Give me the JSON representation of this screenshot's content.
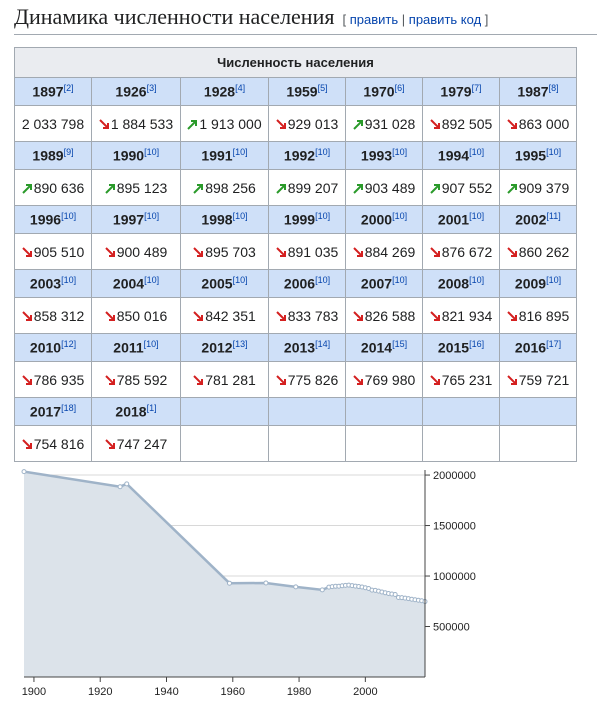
{
  "header": {
    "title": "Динамика численности населения",
    "edit_open": "[",
    "edit_link": "править",
    "edit_sep": "|",
    "edit_code_link": "править код",
    "edit_close": "]"
  },
  "table": {
    "caption": "Численность населения",
    "rows": [
      {
        "years": [
          {
            "year": "1897",
            "ref": "[2]"
          },
          {
            "year": "1926",
            "ref": "[3]"
          },
          {
            "year": "1928",
            "ref": "[4]"
          },
          {
            "year": "1959",
            "ref": "[5]"
          },
          {
            "year": "1970",
            "ref": "[6]"
          },
          {
            "year": "1979",
            "ref": "[7]"
          },
          {
            "year": "1987",
            "ref": "[8]"
          }
        ],
        "values": [
          {
            "text": "2 033 798"
          },
          {
            "text": "1 884 533",
            "trend": "down"
          },
          {
            "text": "1 913 000",
            "trend": "up"
          },
          {
            "text": "929 013",
            "trend": "down"
          },
          {
            "text": "931 028",
            "trend": "up"
          },
          {
            "text": "892 505",
            "trend": "down"
          },
          {
            "text": "863 000",
            "trend": "down"
          }
        ]
      },
      {
        "years": [
          {
            "year": "1989",
            "ref": "[9]"
          },
          {
            "year": "1990",
            "ref": "[10]"
          },
          {
            "year": "1991",
            "ref": "[10]"
          },
          {
            "year": "1992",
            "ref": "[10]"
          },
          {
            "year": "1993",
            "ref": "[10]"
          },
          {
            "year": "1994",
            "ref": "[10]"
          },
          {
            "year": "1995",
            "ref": "[10]"
          }
        ],
        "values": [
          {
            "text": "890 636",
            "trend": "up"
          },
          {
            "text": "895 123",
            "trend": "up"
          },
          {
            "text": "898 256",
            "trend": "up"
          },
          {
            "text": "899 207",
            "trend": "up"
          },
          {
            "text": "903 489",
            "trend": "up"
          },
          {
            "text": "907 552",
            "trend": "up"
          },
          {
            "text": "909 379",
            "trend": "up"
          }
        ]
      },
      {
        "years": [
          {
            "year": "1996",
            "ref": "[10]"
          },
          {
            "year": "1997",
            "ref": "[10]"
          },
          {
            "year": "1998",
            "ref": "[10]"
          },
          {
            "year": "1999",
            "ref": "[10]"
          },
          {
            "year": "2000",
            "ref": "[10]"
          },
          {
            "year": "2001",
            "ref": "[10]"
          },
          {
            "year": "2002",
            "ref": "[11]"
          }
        ],
        "values": [
          {
            "text": "905 510",
            "trend": "down"
          },
          {
            "text": "900 489",
            "trend": "down"
          },
          {
            "text": "895 703",
            "trend": "down"
          },
          {
            "text": "891 035",
            "trend": "down"
          },
          {
            "text": "884 269",
            "trend": "down"
          },
          {
            "text": "876 672",
            "trend": "down"
          },
          {
            "text": "860 262",
            "trend": "down"
          }
        ]
      },
      {
        "years": [
          {
            "year": "2003",
            "ref": "[10]"
          },
          {
            "year": "2004",
            "ref": "[10]"
          },
          {
            "year": "2005",
            "ref": "[10]"
          },
          {
            "year": "2006",
            "ref": "[10]"
          },
          {
            "year": "2007",
            "ref": "[10]"
          },
          {
            "year": "2008",
            "ref": "[10]"
          },
          {
            "year": "2009",
            "ref": "[10]"
          }
        ],
        "values": [
          {
            "text": "858 312",
            "trend": "down"
          },
          {
            "text": "850 016",
            "trend": "down"
          },
          {
            "text": "842 351",
            "trend": "down"
          },
          {
            "text": "833 783",
            "trend": "down"
          },
          {
            "text": "826 588",
            "trend": "down"
          },
          {
            "text": "821 934",
            "trend": "down"
          },
          {
            "text": "816 895",
            "trend": "down"
          }
        ]
      },
      {
        "years": [
          {
            "year": "2010",
            "ref": "[12]"
          },
          {
            "year": "2011",
            "ref": "[10]"
          },
          {
            "year": "2012",
            "ref": "[13]"
          },
          {
            "year": "2013",
            "ref": "[14]"
          },
          {
            "year": "2014",
            "ref": "[15]"
          },
          {
            "year": "2015",
            "ref": "[16]"
          },
          {
            "year": "2016",
            "ref": "[17]"
          }
        ],
        "values": [
          {
            "text": "786 935",
            "trend": "down"
          },
          {
            "text": "785 592",
            "trend": "down"
          },
          {
            "text": "781 281",
            "trend": "down"
          },
          {
            "text": "775 826",
            "trend": "down"
          },
          {
            "text": "769 980",
            "trend": "down"
          },
          {
            "text": "765 231",
            "trend": "down"
          },
          {
            "text": "759 721",
            "trend": "down"
          }
        ]
      },
      {
        "years": [
          {
            "year": "2017",
            "ref": "[18]"
          },
          {
            "year": "2018",
            "ref": "[1]"
          }
        ],
        "values": [
          {
            "text": "754 816",
            "trend": "down"
          },
          {
            "text": "747 247",
            "trend": "down"
          }
        ]
      }
    ]
  },
  "chart_data": {
    "type": "area",
    "color": "#9fb3c8",
    "fill": "#dce3ea",
    "x": [
      1897,
      1926,
      1928,
      1959,
      1970,
      1979,
      1987,
      1989,
      1990,
      1991,
      1992,
      1993,
      1994,
      1995,
      1996,
      1997,
      1998,
      1999,
      2000,
      2001,
      2002,
      2003,
      2004,
      2005,
      2006,
      2007,
      2008,
      2009,
      2010,
      2011,
      2012,
      2013,
      2014,
      2015,
      2016,
      2017,
      2018
    ],
    "values": [
      2033798,
      1884533,
      1913000,
      929013,
      931028,
      892505,
      863000,
      890636,
      895123,
      898256,
      899207,
      903489,
      907552,
      909379,
      905510,
      900489,
      895703,
      891035,
      884269,
      876672,
      860262,
      858312,
      850016,
      842351,
      833783,
      826588,
      821934,
      816895,
      786935,
      785592,
      781281,
      775826,
      769980,
      765231,
      759721,
      754816,
      747247
    ],
    "xlim": [
      1897,
      2018
    ],
    "xticks": [
      1900,
      1920,
      1940,
      1960,
      1980,
      2000
    ],
    "ylim": [
      0,
      2050000
    ],
    "yticks": [
      500000,
      1000000,
      1500000,
      2000000
    ],
    "grid": true
  }
}
